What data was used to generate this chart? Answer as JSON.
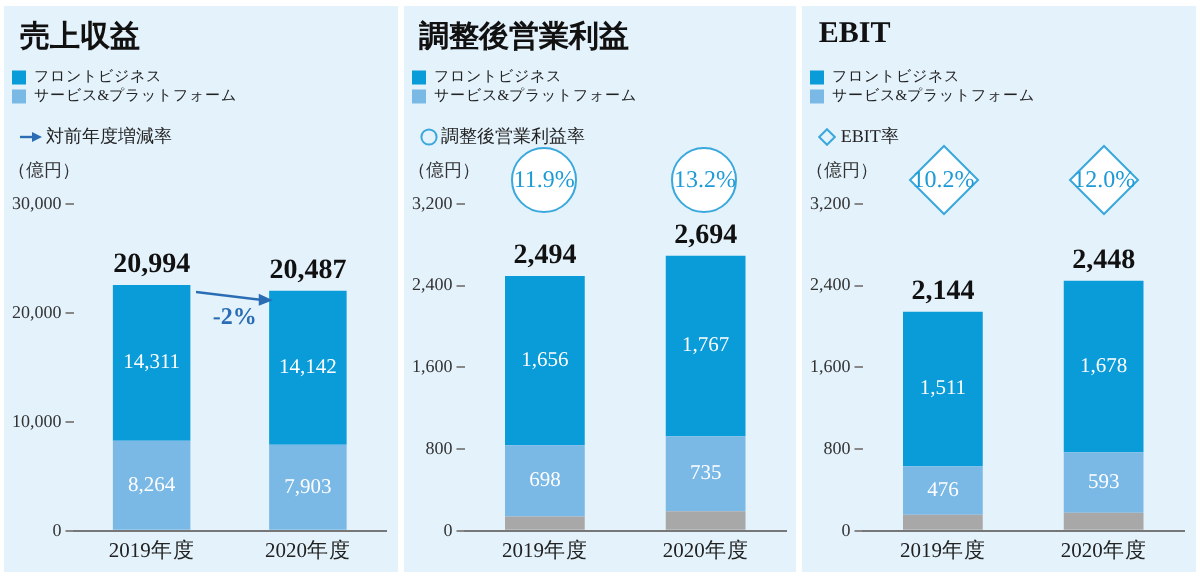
{
  "chart_data": [
    {
      "type": "bar",
      "title": "売上収益",
      "ylabel": "（億円）",
      "stacked": true,
      "legend": "top left",
      "grid": false,
      "categories": [
        "2019年度",
        "2020年度"
      ],
      "series": [
        {
          "name": "サービス&プラットフォーム",
          "color": "#7ab8e6",
          "values": [
            8264,
            7903
          ],
          "value_labels": [
            "8,264",
            "7,903"
          ]
        },
        {
          "name": "フロントビジネス",
          "color": "#0a9bd9",
          "values": [
            14311,
            14142
          ],
          "value_labels": [
            "14,311",
            "14,142"
          ]
        }
      ],
      "ylim": [
        0,
        30000
      ],
      "yticks": [
        {
          "value": 0,
          "label": "0"
        },
        {
          "value": 10000,
          "label": "10,000"
        },
        {
          "value": 20000,
          "label": "20,000"
        },
        {
          "value": 30000,
          "label": "30,000"
        }
      ],
      "annotations": [
        "対前年度増減率",
        "20,994",
        "20,487",
        "-2%"
      ]
    },
    {
      "type": "bar",
      "title": "調整後営業利益",
      "ylabel": "（億円）",
      "stacked": true,
      "legend": "top left",
      "grid": false,
      "categories": [
        "2019年度",
        "2020年度"
      ],
      "series": [
        {
          "color": "#a8a8a8",
          "values": [
            140,
            192
          ],
          "value_labels": [
            null,
            null
          ]
        },
        {
          "name": "サービス&プラットフォーム",
          "color": "#7ab8e6",
          "values": [
            698,
            735
          ],
          "value_labels": [
            "698",
            "735"
          ]
        },
        {
          "name": "フロントビジネス",
          "color": "#0a9bd9",
          "values": [
            1656,
            1767
          ],
          "value_labels": [
            "1,656",
            "1,767"
          ]
        }
      ],
      "totals": [
        "2,494",
        "2,694"
      ],
      "ylim": [
        0,
        3200
      ],
      "yticks": [
        {
          "value": 0,
          "label": "0"
        },
        {
          "value": 800,
          "label": "800"
        },
        {
          "value": 1600,
          "label": "1,600"
        },
        {
          "value": 2400,
          "label": "2,400"
        },
        {
          "value": 3200,
          "label": "3,200"
        }
      ],
      "annotations": [
        "調整後営業利益率",
        "11.9%",
        "13.2%"
      ]
    },
    {
      "type": "bar",
      "title": "EBIT",
      "ylabel": "（億円）",
      "stacked": true,
      "legend": "top left",
      "grid": false,
      "categories": [
        "2019年度",
        "2020年度"
      ],
      "series": [
        {
          "color": "#a8a8a8",
          "values": [
            157,
            177
          ],
          "value_labels": [
            null,
            null
          ]
        },
        {
          "name": "サービス&プラットフォーム",
          "color": "#7ab8e6",
          "values": [
            476,
            593
          ],
          "value_labels": [
            "476",
            "593"
          ]
        },
        {
          "name": "フロントビジネス",
          "color": "#0a9bd9",
          "values": [
            1511,
            1678
          ],
          "value_labels": [
            "1,511",
            "1,678"
          ]
        }
      ],
      "totals": [
        "2,144",
        "2,448"
      ],
      "ylim": [
        0,
        3200
      ],
      "yticks": [
        {
          "value": 0,
          "label": "0"
        },
        {
          "value": 800,
          "label": "800"
        },
        {
          "value": 1600,
          "label": "1,600"
        },
        {
          "value": 2400,
          "label": "2,400"
        },
        {
          "value": 3200,
          "label": "3,200"
        }
      ],
      "annotations": [
        "EBIT率",
        "10.2%",
        "12.0%"
      ]
    }
  ]
}
